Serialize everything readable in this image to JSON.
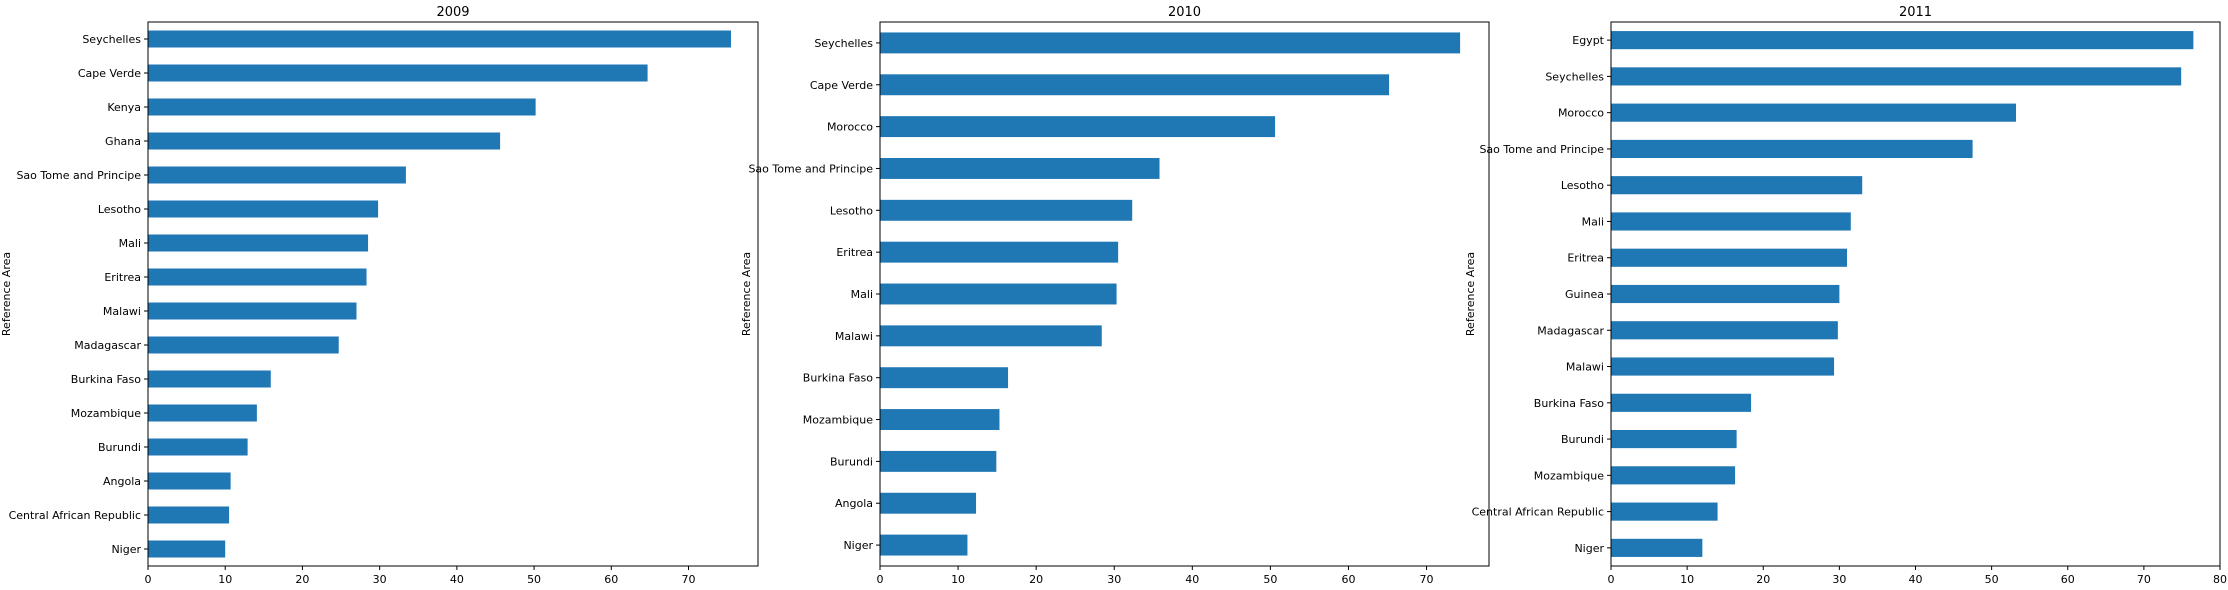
{
  "colors": {
    "bar": "#1f77b4",
    "axis": "#000000",
    "background": "#ffffff"
  },
  "chart_data": [
    {
      "type": "bar",
      "orientation": "horizontal",
      "title": "2009",
      "ylabel": "Reference Area",
      "xlabel": "",
      "xlim": [
        0,
        79
      ],
      "xticks": [
        0,
        10,
        20,
        30,
        40,
        50,
        60,
        70
      ],
      "grid": false,
      "categories": [
        "Seychelles",
        "Cape Verde",
        "Kenya",
        "Ghana",
        "Sao Tome and Principe",
        "Lesotho",
        "Mali",
        "Eritrea",
        "Malawi",
        "Madagascar",
        "Burkina Faso",
        "Mozambique",
        "Burundi",
        "Angola",
        "Central African Republic",
        "Niger"
      ],
      "values": [
        75.5,
        64.7,
        50.2,
        45.6,
        33.4,
        29.8,
        28.5,
        28.3,
        27.0,
        24.7,
        15.9,
        14.1,
        12.9,
        10.7,
        10.5,
        10.0
      ]
    },
    {
      "type": "bar",
      "orientation": "horizontal",
      "title": "2010",
      "ylabel": "Reference Area",
      "xlabel": "",
      "xlim": [
        0,
        78
      ],
      "xticks": [
        0,
        10,
        20,
        30,
        40,
        50,
        60,
        70
      ],
      "grid": false,
      "categories": [
        "Seychelles",
        "Cape Verde",
        "Morocco",
        "Sao Tome and Principe",
        "Lesotho",
        "Eritrea",
        "Mali",
        "Malawi",
        "Burkina Faso",
        "Mozambique",
        "Burundi",
        "Angola",
        "Niger"
      ],
      "values": [
        74.3,
        65.2,
        50.6,
        35.8,
        32.3,
        30.5,
        30.3,
        28.4,
        16.4,
        15.3,
        14.9,
        12.3,
        11.2
      ]
    },
    {
      "type": "bar",
      "orientation": "horizontal",
      "title": "2011",
      "ylabel": "Reference Area",
      "xlabel": "",
      "xlim": [
        0,
        80
      ],
      "xticks": [
        0,
        10,
        20,
        30,
        40,
        50,
        60,
        70,
        80
      ],
      "grid": false,
      "categories": [
        "Egypt",
        "Seychelles",
        "Morocco",
        "Sao Tome and Principe",
        "Lesotho",
        "Mali",
        "Eritrea",
        "Guinea",
        "Madagascar",
        "Malawi",
        "Burkina Faso",
        "Burundi",
        "Mozambique",
        "Central African Republic",
        "Niger"
      ],
      "values": [
        76.5,
        74.9,
        53.2,
        47.5,
        33.0,
        31.5,
        31.0,
        30.0,
        29.8,
        29.3,
        18.4,
        16.5,
        16.3,
        14.0,
        12.0
      ]
    }
  ]
}
